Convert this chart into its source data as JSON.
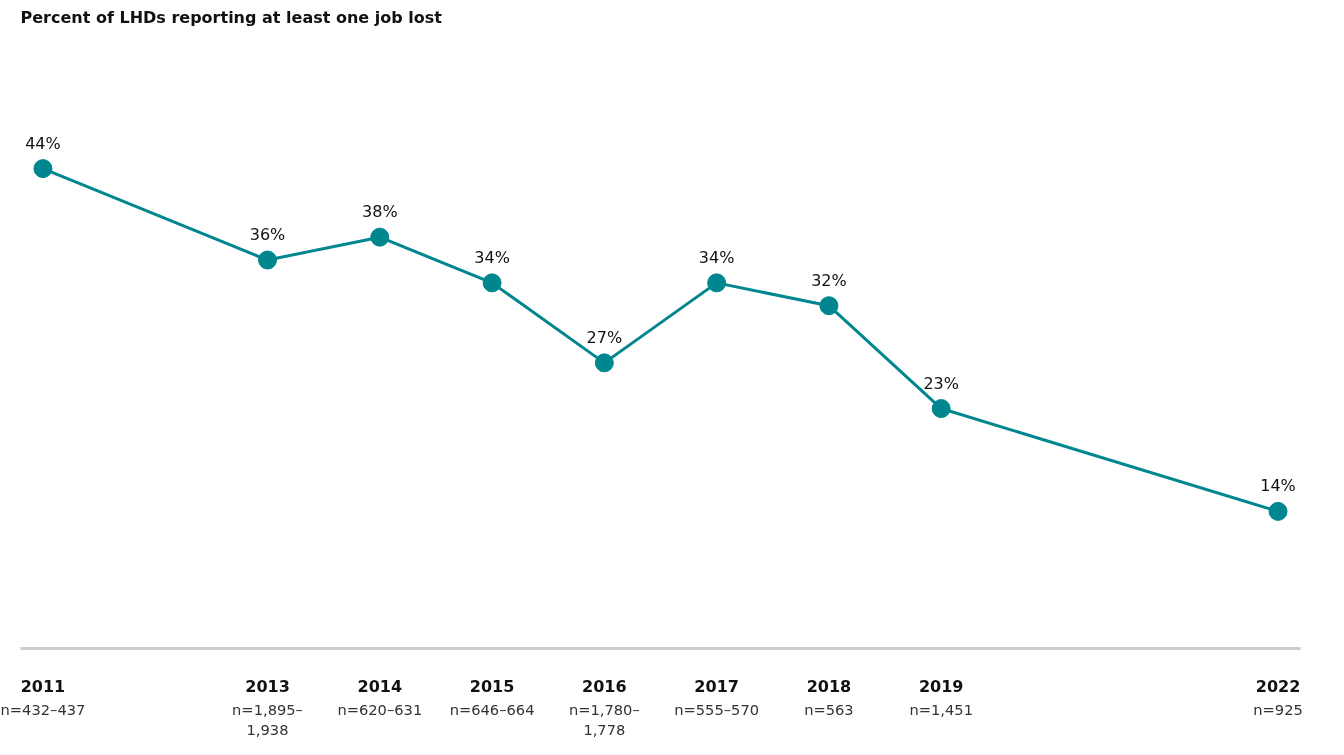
{
  "chart_data": {
    "type": "line",
    "title": "Percent of LHDs reporting at least one job lost",
    "x": [
      2011,
      2013,
      2014,
      2015,
      2016,
      2017,
      2018,
      2019,
      2022
    ],
    "series": [
      {
        "color": "#00868f",
        "values": [
          44,
          36,
          38,
          34,
          27,
          34,
          32,
          23,
          14
        ],
        "value_labels": [
          "44%",
          "36%",
          "38%",
          "34%",
          "27%",
          "34%",
          "32%",
          "23%",
          "14%"
        ]
      }
    ],
    "xlim": [
      2010.8,
      2022.2
    ],
    "xticks": [
      2011,
      2013,
      2014,
      2015,
      2016,
      2017,
      2018,
      2019,
      2022
    ],
    "annotations": [
      "n=432–437",
      "n=1,895–\n1,938",
      "n=620–631",
      "n=646–664",
      "n=1,780–\n1,778",
      "n=555–570",
      "n=563",
      "n=1,451",
      "n=925"
    ],
    "tick_labels": "x",
    "grid": false,
    "marker": "circle",
    "line_style": "solid"
  }
}
